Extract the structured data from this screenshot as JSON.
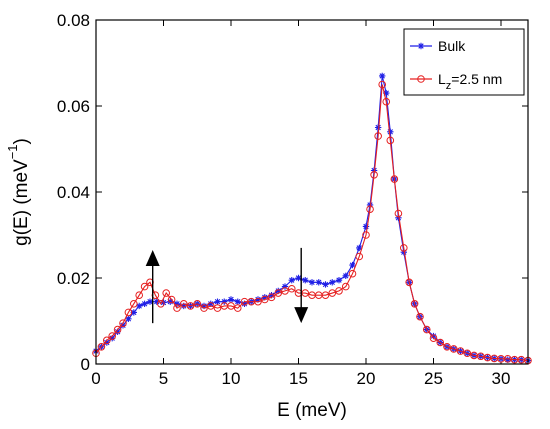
{
  "chart_data": {
    "type": "line",
    "xlabel": "E (meV)",
    "ylabel": "g(E)  (meV",
    "ylabel_sup": "−1",
    "ylabel_close": ")",
    "xlim": [
      0,
      32
    ],
    "ylim": [
      0,
      0.08
    ],
    "xticks": [
      0,
      5,
      10,
      15,
      20,
      25,
      30
    ],
    "xtick_labels": [
      "0",
      "5",
      "10",
      "15",
      "20",
      "25",
      "30"
    ],
    "yticks": [
      0,
      0.02,
      0.04,
      0.06,
      0.08
    ],
    "ytick_labels": [
      "0",
      "0.02",
      "0.04",
      "0.06",
      "0.08"
    ],
    "grid": false,
    "legend": {
      "position": "top-right",
      "entries": [
        {
          "label": "Bulk",
          "color": "#1f1fe6",
          "marker": "asterisk"
        },
        {
          "label_main": "L",
          "label_sub": "z",
          "label_rest": "=2.5 nm",
          "color": "#e62020",
          "marker": "circle"
        }
      ]
    },
    "series": [
      {
        "name": "Bulk",
        "color": "#1f1fe6",
        "marker": "asterisk",
        "points": [
          [
            0,
            0.003
          ],
          [
            0.4,
            0.004
          ],
          [
            0.8,
            0.005
          ],
          [
            1.2,
            0.006
          ],
          [
            1.6,
            0.0075
          ],
          [
            2,
            0.009
          ],
          [
            2.4,
            0.0105
          ],
          [
            2.8,
            0.012
          ],
          [
            3.2,
            0.0135
          ],
          [
            3.6,
            0.014
          ],
          [
            4.0,
            0.0145
          ],
          [
            4.5,
            0.0145
          ],
          [
            5,
            0.0143
          ],
          [
            5.5,
            0.0145
          ],
          [
            6,
            0.014
          ],
          [
            6.5,
            0.0135
          ],
          [
            7,
            0.0135
          ],
          [
            7.5,
            0.014
          ],
          [
            8,
            0.0135
          ],
          [
            8.5,
            0.014
          ],
          [
            9,
            0.0145
          ],
          [
            9.5,
            0.0145
          ],
          [
            10,
            0.015
          ],
          [
            10.5,
            0.0145
          ],
          [
            11,
            0.014
          ],
          [
            11.5,
            0.0145
          ],
          [
            12,
            0.015
          ],
          [
            12.5,
            0.0155
          ],
          [
            13,
            0.016
          ],
          [
            13.5,
            0.017
          ],
          [
            14,
            0.018
          ],
          [
            14.5,
            0.0195
          ],
          [
            15,
            0.02
          ],
          [
            15.5,
            0.0195
          ],
          [
            16,
            0.019
          ],
          [
            16.5,
            0.019
          ],
          [
            17,
            0.0185
          ],
          [
            17.5,
            0.019
          ],
          [
            18,
            0.0195
          ],
          [
            18.5,
            0.0205
          ],
          [
            19,
            0.023
          ],
          [
            19.5,
            0.027
          ],
          [
            20,
            0.032
          ],
          [
            20.3,
            0.037
          ],
          [
            20.6,
            0.045
          ],
          [
            20.9,
            0.055
          ],
          [
            21.2,
            0.067
          ],
          [
            21.5,
            0.063
          ],
          [
            21.8,
            0.054
          ],
          [
            22.1,
            0.043
          ],
          [
            22.4,
            0.034
          ],
          [
            22.8,
            0.026
          ],
          [
            23.2,
            0.019
          ],
          [
            23.6,
            0.014
          ],
          [
            24,
            0.011
          ],
          [
            24.5,
            0.008
          ],
          [
            25,
            0.0065
          ],
          [
            25.5,
            0.005
          ],
          [
            26,
            0.004
          ],
          [
            26.5,
            0.0035
          ],
          [
            27,
            0.003
          ],
          [
            27.5,
            0.0025
          ],
          [
            28,
            0.002
          ],
          [
            28.5,
            0.0018
          ],
          [
            29,
            0.0015
          ],
          [
            29.5,
            0.0013
          ],
          [
            30,
            0.0012
          ],
          [
            30.5,
            0.001
          ],
          [
            31,
            0.001
          ],
          [
            31.5,
            0.001
          ],
          [
            32,
            0.0008
          ]
        ]
      },
      {
        "name": "L",
        "color": "#e62020",
        "marker": "circle",
        "points": [
          [
            0,
            0.0025
          ],
          [
            0.4,
            0.004
          ],
          [
            0.8,
            0.0055
          ],
          [
            1.2,
            0.0065
          ],
          [
            1.6,
            0.008
          ],
          [
            2,
            0.0095
          ],
          [
            2.4,
            0.012
          ],
          [
            2.8,
            0.014
          ],
          [
            3.2,
            0.016
          ],
          [
            3.6,
            0.018
          ],
          [
            4.0,
            0.019
          ],
          [
            4.4,
            0.016
          ],
          [
            4.8,
            0.014
          ],
          [
            5.2,
            0.0165
          ],
          [
            5.6,
            0.015
          ],
          [
            6,
            0.013
          ],
          [
            6.5,
            0.014
          ],
          [
            7,
            0.0135
          ],
          [
            7.5,
            0.014
          ],
          [
            8,
            0.013
          ],
          [
            8.5,
            0.0135
          ],
          [
            9,
            0.013
          ],
          [
            9.5,
            0.0135
          ],
          [
            10,
            0.0135
          ],
          [
            10.5,
            0.013
          ],
          [
            11,
            0.0145
          ],
          [
            11.5,
            0.0145
          ],
          [
            12,
            0.0145
          ],
          [
            12.5,
            0.015
          ],
          [
            13,
            0.0155
          ],
          [
            13.5,
            0.0165
          ],
          [
            14,
            0.017
          ],
          [
            14.5,
            0.0175
          ],
          [
            15,
            0.0165
          ],
          [
            15.5,
            0.0165
          ],
          [
            16,
            0.016
          ],
          [
            16.5,
            0.016
          ],
          [
            17,
            0.016
          ],
          [
            17.5,
            0.0165
          ],
          [
            18,
            0.017
          ],
          [
            18.5,
            0.018
          ],
          [
            19,
            0.021
          ],
          [
            19.5,
            0.025
          ],
          [
            20,
            0.03
          ],
          [
            20.3,
            0.036
          ],
          [
            20.6,
            0.044
          ],
          [
            20.9,
            0.053
          ],
          [
            21.2,
            0.065
          ],
          [
            21.5,
            0.061
          ],
          [
            21.8,
            0.052
          ],
          [
            22.1,
            0.043
          ],
          [
            22.4,
            0.035
          ],
          [
            22.8,
            0.027
          ],
          [
            23.2,
            0.019
          ],
          [
            23.6,
            0.014
          ],
          [
            24,
            0.011
          ],
          [
            24.5,
            0.008
          ],
          [
            25,
            0.006
          ],
          [
            25.5,
            0.005
          ],
          [
            26,
            0.004
          ],
          [
            26.5,
            0.0035
          ],
          [
            27,
            0.003
          ],
          [
            27.5,
            0.0025
          ],
          [
            28,
            0.002
          ],
          [
            28.5,
            0.0018
          ],
          [
            29,
            0.0015
          ],
          [
            29.5,
            0.0013
          ],
          [
            30,
            0.0012
          ],
          [
            30.5,
            0.0012
          ],
          [
            31,
            0.001
          ],
          [
            31.5,
            0.001
          ],
          [
            32,
            0.0008
          ]
        ]
      }
    ],
    "annotations": [
      {
        "type": "arrow",
        "direction": "up",
        "x": 4.2,
        "from_y": 0.0095,
        "to_y": 0.0265
      },
      {
        "type": "arrow",
        "direction": "down",
        "x": 15.2,
        "from_y": 0.027,
        "to_y": 0.0095
      }
    ]
  }
}
